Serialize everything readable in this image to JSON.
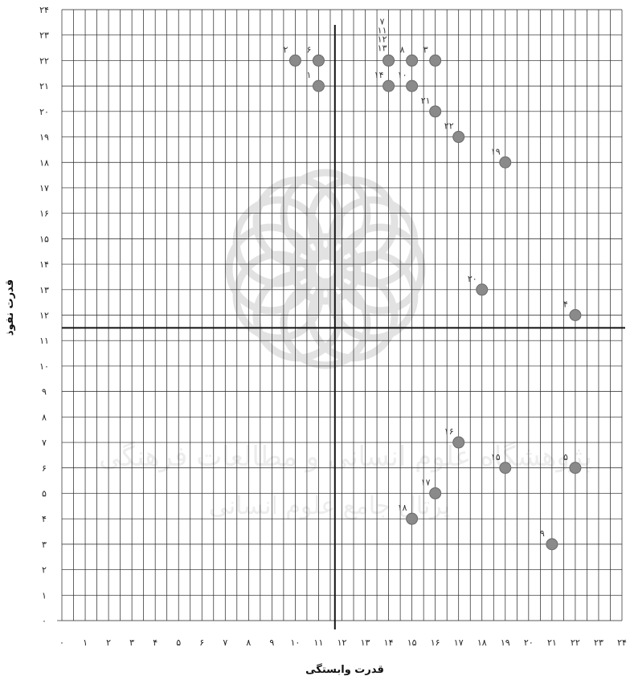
{
  "chart_data": {
    "type": "scatter",
    "title": "",
    "xlabel": "قدرت وابستگی",
    "ylabel": "قدرت نفوذ",
    "xlim": [
      0,
      24
    ],
    "ylim": [
      0,
      24
    ],
    "x_ticks": [
      "۰",
      "۱",
      "۲",
      "۳",
      "۴",
      "۵",
      "۶",
      "۷",
      "۸",
      "۹",
      "۱۰",
      "۱۱",
      "۱۲",
      "۱۳",
      "۱۴",
      "۱۵",
      "۱۶",
      "۱۷",
      "۱۸",
      "۱۹",
      "۲۰",
      "۲۱",
      "۲۲",
      "۲۳",
      "۲۴"
    ],
    "y_ticks": [
      "۰",
      "۱",
      "۲",
      "۳",
      "۴",
      "۵",
      "۶",
      "۷",
      "۸",
      "۹",
      "۱۰",
      "۱۱",
      "۱۲",
      "۱۳",
      "۱۴",
      "۱۵",
      "۱۶",
      "۱۷",
      "۱۸",
      "۱۹",
      "۲۰",
      "۲۱",
      "۲۲",
      "۲۳",
      "۲۴"
    ],
    "grid": true,
    "divider_lines": {
      "x": 11.7,
      "y": 11.5
    },
    "points": [
      {
        "label": "۱",
        "x": 11,
        "y": 21
      },
      {
        "label": "۲",
        "x": 10,
        "y": 22
      },
      {
        "label": "۳",
        "x": 16,
        "y": 22
      },
      {
        "label": "۴",
        "x": 22,
        "y": 12
      },
      {
        "label": "۵",
        "x": 22,
        "y": 6
      },
      {
        "label": "۶",
        "x": 11,
        "y": 22
      },
      {
        "label": "۷ ۱۱ ۱۲ ۱۳",
        "x": 14,
        "y": 22
      },
      {
        "label": "۸",
        "x": 15,
        "y": 22
      },
      {
        "label": "۹",
        "x": 21,
        "y": 3
      },
      {
        "label": "۱۰",
        "x": 15,
        "y": 21
      },
      {
        "label": "۱۴",
        "x": 14,
        "y": 21
      },
      {
        "label": "۱۵",
        "x": 19,
        "y": 6
      },
      {
        "label": "۱۶",
        "x": 17,
        "y": 7
      },
      {
        "label": "۱۷",
        "x": 16,
        "y": 5
      },
      {
        "label": "۱۸",
        "x": 15,
        "y": 4
      },
      {
        "label": "۱۹",
        "x": 19,
        "y": 18
      },
      {
        "label": "۲۰",
        "x": 18,
        "y": 13
      },
      {
        "label": "۲۱",
        "x": 16,
        "y": 20
      },
      {
        "label": "۲۲",
        "x": 17,
        "y": 19
      }
    ],
    "colors": {
      "point": "#8a8a8a",
      "point_stroke": "#6a6a6a",
      "grid": "#222222",
      "divider": "#111111"
    }
  },
  "watermark_text": [
    "پژوهشگاه علوم انسانی و مطالعات فرهنگی",
    "پرتال جامع علوم انسانی"
  ]
}
